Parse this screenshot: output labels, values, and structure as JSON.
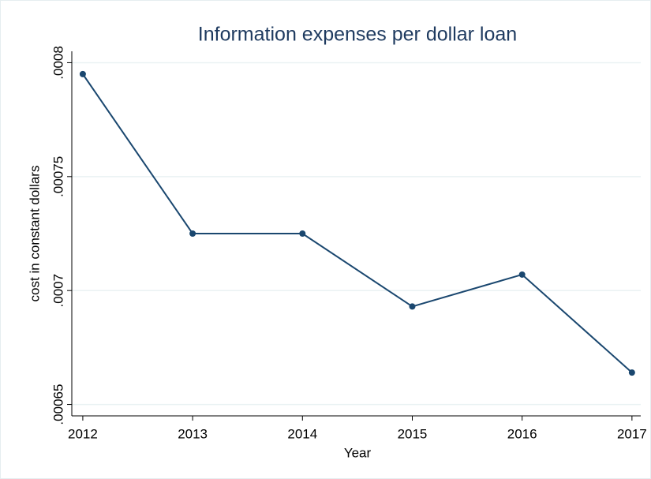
{
  "chart_data": {
    "type": "line",
    "title": "Information expenses per dollar loan",
    "x_label": "Year",
    "y_label": "cost in constant dollars",
    "x": [
      2012,
      2013,
      2014,
      2015,
      2016,
      2017
    ],
    "series": [
      {
        "name": "cost",
        "color": "#1a476f",
        "values": [
          0.000795,
          0.000725,
          0.000725,
          0.000693,
          0.000707,
          0.000664
        ]
      }
    ],
    "xlim": [
      2011.9,
      2017.08
    ],
    "xticks": [
      2012,
      2013,
      2014,
      2015,
      2016,
      2017
    ],
    "ylim": [
      0.000645,
      0.000805
    ],
    "yticks": [
      {
        "value": 0.00065,
        "label": ".00065"
      },
      {
        "value": 0.0007,
        "label": ".0007"
      },
      {
        "value": 0.00075,
        "label": ".00075"
      },
      {
        "value": 0.0008,
        "label": ".0008"
      }
    ],
    "grid": true
  }
}
